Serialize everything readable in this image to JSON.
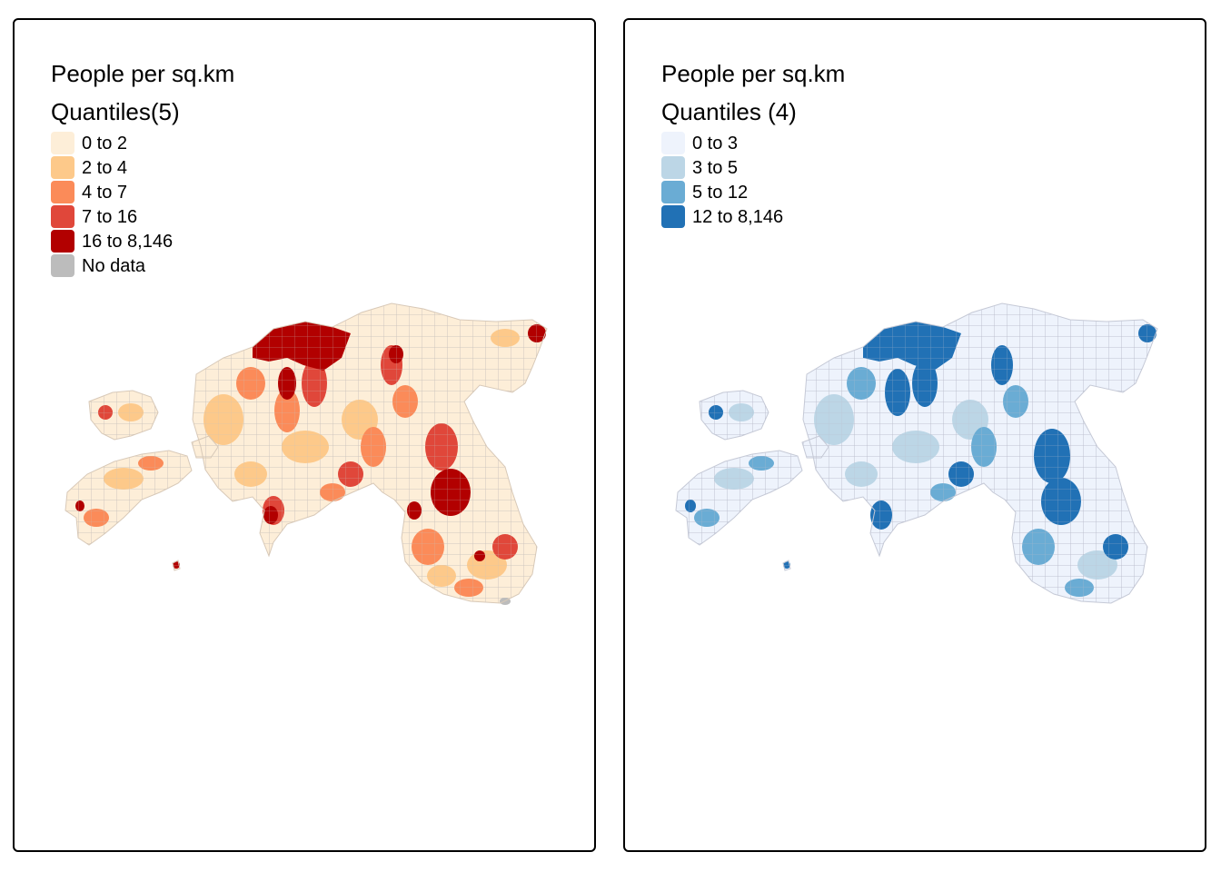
{
  "panels": [
    {
      "title": "People per sq.km",
      "subtitle": "Quantiles(5)",
      "legend": [
        {
          "label": "0 to 2",
          "color": "#fdeed8"
        },
        {
          "label": "2 to 4",
          "color": "#fdc98a"
        },
        {
          "label": "4 to 7",
          "color": "#fb8b59"
        },
        {
          "label": "7 to 16",
          "color": "#e0473a"
        },
        {
          "label": "16 to 8,146",
          "color": "#b20000"
        },
        {
          "label": "No data",
          "color": "#bcbcbc"
        }
      ]
    },
    {
      "title": "People per sq.km",
      "subtitle": "Quantiles (4)",
      "legend": [
        {
          "label": "0 to 3",
          "color": "#eef3fc"
        },
        {
          "label": "3 to 5",
          "color": "#bcd6e6"
        },
        {
          "label": "5 to 12",
          "color": "#6aacd4"
        },
        {
          "label": "12 to 8,146",
          "color": "#2171b5"
        }
      ]
    }
  ]
}
